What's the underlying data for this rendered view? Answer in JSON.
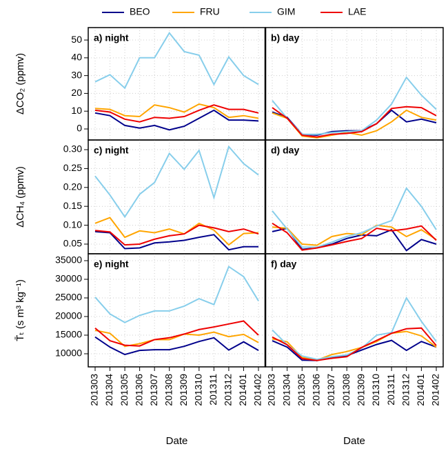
{
  "chart_data": [
    {
      "type": "line",
      "title": "a) night",
      "ylabel": "ΔCO₂ (ppmv)",
      "ylim": [
        -6.2,
        57
      ],
      "yticks": [
        0,
        10,
        20,
        30,
        40,
        50
      ],
      "grid": true,
      "series": [
        {
          "name": "BEO",
          "color": "#00008b",
          "values": [
            9,
            7.5,
            2,
            0.5,
            2,
            -0.5,
            1.5,
            6,
            10.5,
            5,
            5,
            4.5
          ]
        },
        {
          "name": "FRU",
          "color": "#ffa500",
          "values": [
            11.5,
            11,
            7.5,
            7,
            13.5,
            12,
            9.5,
            14,
            12,
            6.5,
            7.5,
            6
          ]
        },
        {
          "name": "GIM",
          "color": "#87ceeb",
          "values": [
            26.5,
            30.5,
            23,
            40,
            40,
            54,
            43.5,
            41.5,
            25,
            40.5,
            30,
            25
          ]
        },
        {
          "name": "LAE",
          "color": "#ee0000",
          "values": [
            10.5,
            9.5,
            5.5,
            4,
            6.5,
            6,
            7,
            10.5,
            13.5,
            11,
            11,
            9
          ]
        }
      ]
    },
    {
      "type": "line",
      "title": "b) day",
      "ylim": [
        -6.2,
        57
      ],
      "grid": true,
      "series": [
        {
          "values": [
            9.5,
            6.5,
            -3,
            -3.5,
            -1.5,
            -1,
            -1,
            3,
            10.5,
            4,
            5.5,
            3.5
          ]
        },
        {
          "values": [
            9,
            6,
            -4,
            -5,
            -3.5,
            -2,
            -3.5,
            -1,
            4,
            10.5,
            6.5,
            5
          ]
        },
        {
          "values": [
            16,
            6,
            -3,
            -3,
            -2,
            -1.5,
            -1,
            5,
            14,
            29,
            19,
            11
          ]
        },
        {
          "values": [
            12,
            6,
            -3.5,
            -4.5,
            -3,
            -2.5,
            -1.5,
            3,
            11.5,
            12.5,
            12,
            7.5
          ]
        }
      ]
    },
    {
      "type": "line",
      "title": "c) night",
      "ylabel": "ΔCH₄ (ppmv)",
      "ylim": [
        0.0244,
        0.3256
      ],
      "yticks": [
        0.05,
        {
          "value": 0.1,
          "label": "0.10"
        },
        0.15,
        {
          "value": 0.2,
          "label": "0.20"
        },
        0.25,
        {
          "value": 0.3,
          "label": "0.30"
        }
      ],
      "grid": true,
      "series": [
        {
          "values": [
            0.083,
            0.08,
            0.038,
            0.04,
            0.053,
            0.056,
            0.06,
            0.068,
            0.075,
            0.035,
            0.043,
            0.043
          ]
        },
        {
          "values": [
            0.105,
            0.12,
            0.068,
            0.085,
            0.08,
            0.09,
            0.077,
            0.105,
            0.087,
            0.048,
            0.078,
            0.08
          ]
        },
        {
          "values": [
            0.23,
            0.18,
            0.122,
            0.182,
            0.213,
            0.29,
            0.248,
            0.298,
            0.173,
            0.308,
            0.263,
            0.233
          ]
        },
        {
          "values": [
            0.086,
            0.082,
            0.048,
            0.05,
            0.063,
            0.072,
            0.077,
            0.1,
            0.093,
            0.083,
            0.09,
            0.077
          ]
        }
      ]
    },
    {
      "type": "line",
      "title": "d) day",
      "ylim": [
        0.0244,
        0.3256
      ],
      "grid": true,
      "series": [
        {
          "values": [
            0.083,
            0.092,
            0.036,
            0.04,
            0.05,
            0.065,
            0.074,
            0.072,
            0.088,
            0.033,
            0.062,
            0.05
          ]
        },
        {
          "values": [
            0.095,
            0.092,
            0.05,
            0.047,
            0.07,
            0.078,
            0.075,
            0.1,
            0.095,
            0.07,
            0.088,
            0.062
          ]
        },
        {
          "values": [
            0.138,
            0.09,
            0.042,
            0.042,
            0.055,
            0.07,
            0.08,
            0.098,
            0.112,
            0.198,
            0.15,
            0.088
          ]
        },
        {
          "values": [
            0.105,
            0.08,
            0.034,
            0.04,
            0.048,
            0.057,
            0.065,
            0.092,
            0.085,
            0.09,
            0.098,
            0.06
          ]
        }
      ]
    },
    {
      "type": "line",
      "title": "e) night",
      "ylabel": "T̄ₜ (s m³ kg⁻¹)",
      "xlabel": "Date",
      "ylim": [
        6480,
        36850
      ],
      "yticks": [
        10000,
        15000,
        20000,
        25000,
        30000,
        35000
      ],
      "grid": true,
      "categories": [
        "201303",
        "201304",
        "201305",
        "201306",
        "201307",
        "201308",
        "201309",
        "201310",
        "201311",
        "201312",
        "201401",
        "201402"
      ],
      "series": [
        {
          "values": [
            14500,
            11800,
            9800,
            10900,
            11100,
            11100,
            12000,
            13300,
            14300,
            11000,
            13200,
            10900
          ]
        },
        {
          "values": [
            16300,
            15500,
            12000,
            12700,
            13800,
            13800,
            15300,
            15000,
            15800,
            14600,
            15200,
            13000
          ]
        },
        {
          "values": [
            25200,
            20700,
            18400,
            20300,
            21500,
            21500,
            22800,
            24800,
            23200,
            33400,
            30700,
            24200
          ]
        },
        {
          "values": [
            16900,
            13500,
            12300,
            12100,
            13800,
            14300,
            15300,
            16500,
            17200,
            18000,
            18800,
            15000
          ]
        }
      ]
    },
    {
      "type": "line",
      "title": "f) day",
      "xlabel": "Date",
      "ylim": [
        6480,
        36850
      ],
      "grid": true,
      "categories": [
        "201303",
        "201304",
        "201305",
        "201306",
        "201307",
        "201308",
        "201309",
        "201310",
        "201311",
        "201312",
        "201401",
        "201402"
      ],
      "series": [
        {
          "values": [
            13500,
            11800,
            8300,
            8200,
            9100,
            9500,
            11000,
            12500,
            13600,
            10900,
            13300,
            11800
          ]
        },
        {
          "values": [
            14000,
            13200,
            9000,
            8300,
            9800,
            10600,
            11700,
            13300,
            15500,
            16000,
            14800,
            11800
          ]
        },
        {
          "values": [
            16400,
            12400,
            9400,
            8500,
            9200,
            9700,
            11500,
            15000,
            15700,
            25000,
            18700,
            13300
          ]
        },
        {
          "values": [
            14500,
            12400,
            8700,
            8200,
            8800,
            9200,
            11700,
            13600,
            15500,
            16700,
            16900,
            12200
          ]
        }
      ]
    }
  ]
}
